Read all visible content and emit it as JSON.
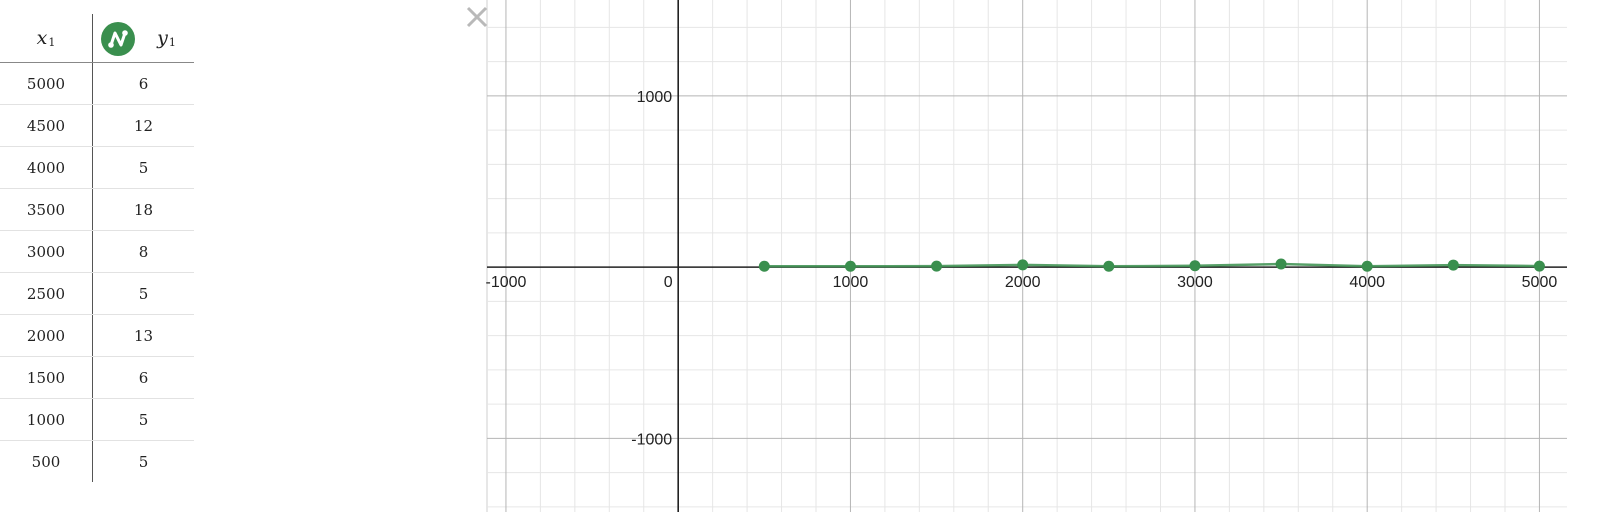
{
  "table": {
    "x_header": "x",
    "x_sub": "1",
    "y_header": "y",
    "y_sub": "1",
    "icon": "scatter-lines-icon",
    "rows": [
      {
        "x": "5000",
        "y": "6"
      },
      {
        "x": "4500",
        "y": "12"
      },
      {
        "x": "4000",
        "y": "5"
      },
      {
        "x": "3500",
        "y": "18"
      },
      {
        "x": "3000",
        "y": "8"
      },
      {
        "x": "2500",
        "y": "5"
      },
      {
        "x": "2000",
        "y": "13"
      },
      {
        "x": "1500",
        "y": "6"
      },
      {
        "x": "1000",
        "y": "5"
      },
      {
        "x": "500",
        "y": "5"
      }
    ]
  },
  "close_icon": "close-icon",
  "colors": {
    "series": "#3a8f4e",
    "axis": "#222222",
    "grid_major": "#b5b5b5",
    "grid_minor": "#e6e6e6"
  },
  "chart_data": {
    "type": "scatter",
    "lines": true,
    "series": [
      {
        "x": [
          500,
          1000,
          1500,
          2000,
          2500,
          3000,
          3500,
          4000,
          4500,
          5000
        ],
        "y": [
          5,
          5,
          6,
          13,
          5,
          8,
          18,
          5,
          12,
          6
        ]
      }
    ],
    "xlim": [
      -1110,
      5160
    ],
    "ylim": [
      -1430,
      1560
    ],
    "x_ticks": [
      "-1000",
      "0",
      "1000",
      "2000",
      "3000",
      "4000",
      "5000"
    ],
    "y_ticks": [
      "1000",
      "-1000"
    ],
    "grid": true
  }
}
